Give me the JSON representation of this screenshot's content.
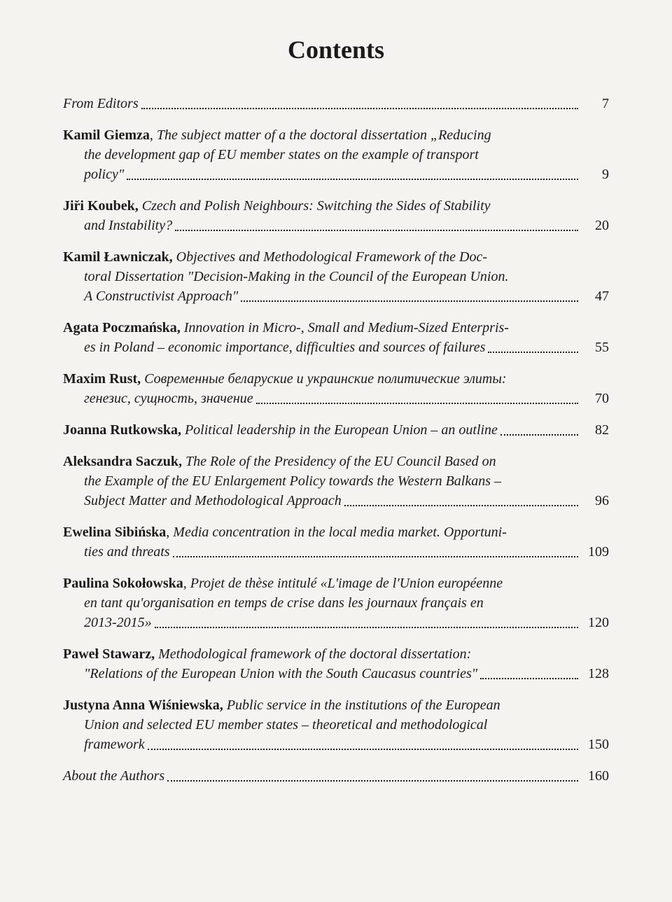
{
  "title": "Contents",
  "entries": [
    {
      "html": "<span class='article-title'>From Editors</span>",
      "page": "7"
    },
    {
      "html": "<span class='author'>Kamil Giemza</span><span class='normal'>, </span><span class='article-title'>The subject matter of a the doctoral dissertation „Reducing</span><br><span class='indent-line'><span class='article-title'>the development gap of EU member states on the example of transport</span></span><span class='indent-line'><span class='article-title'>policy\"</span></span>",
      "page": "9"
    },
    {
      "html": "<span class='author'>Jiři Koubek, </span><span class='article-title'>Czech and Polish Neighbours: Switching the Sides of Stability</span><br><span class='indent-line'><span class='article-title'>and Instability?</span></span>",
      "page": "20"
    },
    {
      "html": "<span class='author'>Kamil Ławniczak, </span><span class='article-title'>Objectives and Methodological Framework of the Doc-</span><br><span class='indent-line'><span class='article-title'>toral Dissertation \"Decision-Making in the Council of the European Union.</span></span><span class='indent-line'><span class='article-title'>A Constructivist Approach\"</span></span>",
      "page": "47"
    },
    {
      "html": "<span class='author'>Agata Poczmańska, </span><span class='article-title'>Innovation in Micro-, Small and Medium-Sized Enterpris-</span><br><span class='indent-line'><span class='article-title'>es in Poland – economic importance, difficulties and sources of failures</span></span>",
      "page": "55"
    },
    {
      "html": "<span class='author'>Maxim Rust, </span><span class='article-title'>Современные беларуские и украинские политические элиты:</span><br><span class='indent-line'><span class='article-title'>генезис, сущность, значение</span></span>",
      "page": "70"
    },
    {
      "html": "<span class='author'>Joanna Rutkowska, </span><span class='article-title'>Political leadership in the European Union – an outline</span>",
      "page": "82"
    },
    {
      "html": "<span class='author'>Aleksandra Saczuk, </span><span class='article-title'>The Role of the Presidency of the EU Council Based on</span><br><span class='indent-line'><span class='article-title'>the Example of the EU Enlargement Policy towards the Western Balkans –</span></span><span class='indent-line'><span class='article-title'>Subject Matter and Methodological Approach</span></span>",
      "page": "96"
    },
    {
      "html": "<span class='author'>Ewelina Sibińska</span><span class='normal'>, </span><span class='article-title'>Media concentration in the local media market. Opportuni-</span><br><span class='indent-line'><span class='article-title'>ties and threats</span></span>",
      "page": "109"
    },
    {
      "html": "<span class='author'>Paulina Sokołowska</span><span class='normal'>, </span><span class='article-title'>Projet de thèse intitulé «L'image de l'Union européenne</span><br><span class='indent-line'><span class='article-title'>en tant qu'organisation en temps de crise dans les journaux français en</span></span><span class='indent-line'><span class='article-title'>2013-2015»</span></span>",
      "page": "120"
    },
    {
      "html": "<span class='author'>Paweł Stawarz, </span><span class='article-title'>Methodological framework of the doctoral dissertation:</span><br><span class='indent-line'><span class='article-title'>\"Relations of the European Union with the South Caucasus countries\"</span></span>",
      "page": "128"
    },
    {
      "html": "<span class='author'>Justyna Anna Wiśniewska, </span><span class='article-title'>Public service in the institutions of the European</span><br><span class='indent-line'><span class='article-title'>Union and selected EU member states – theoretical and methodological</span></span><span class='indent-line'><span class='article-title'>framework</span></span>",
      "page": "150"
    },
    {
      "html": "<span class='article-title'>About the Authors</span>",
      "page": "160"
    }
  ]
}
